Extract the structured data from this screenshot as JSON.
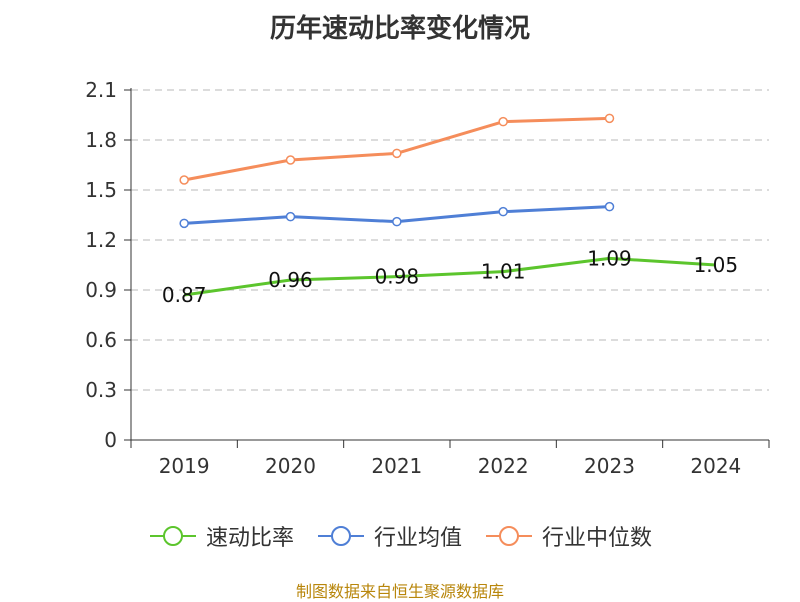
{
  "chart_data": {
    "type": "line",
    "title": "历年速动比率变化情况",
    "categories": [
      "2019",
      "2020",
      "2021",
      "2022",
      "2023",
      "2024"
    ],
    "y_ticks": [
      "0",
      "0.3",
      "0.6",
      "0.9",
      "1.2",
      "1.5",
      "1.8",
      "2.1"
    ],
    "ylim": [
      0,
      2.1
    ],
    "grid": true,
    "legend_position": "bottom",
    "series": [
      {
        "name": "速动比率",
        "color": "#5cc52d",
        "values": [
          0.87,
          0.96,
          0.98,
          1.01,
          1.09,
          1.05
        ],
        "labels": [
          "0.87",
          "0.96",
          "0.98",
          "1.01",
          "1.09",
          "1.05"
        ]
      },
      {
        "name": "行业均值",
        "color": "#4f7fd6",
        "values": [
          1.3,
          1.34,
          1.31,
          1.37,
          1.4,
          null
        ]
      },
      {
        "name": "行业中位数",
        "color": "#f58d5b",
        "values": [
          1.56,
          1.68,
          1.72,
          1.91,
          1.93,
          null
        ]
      }
    ]
  },
  "source": "制图数据来自恒生聚源数据库"
}
